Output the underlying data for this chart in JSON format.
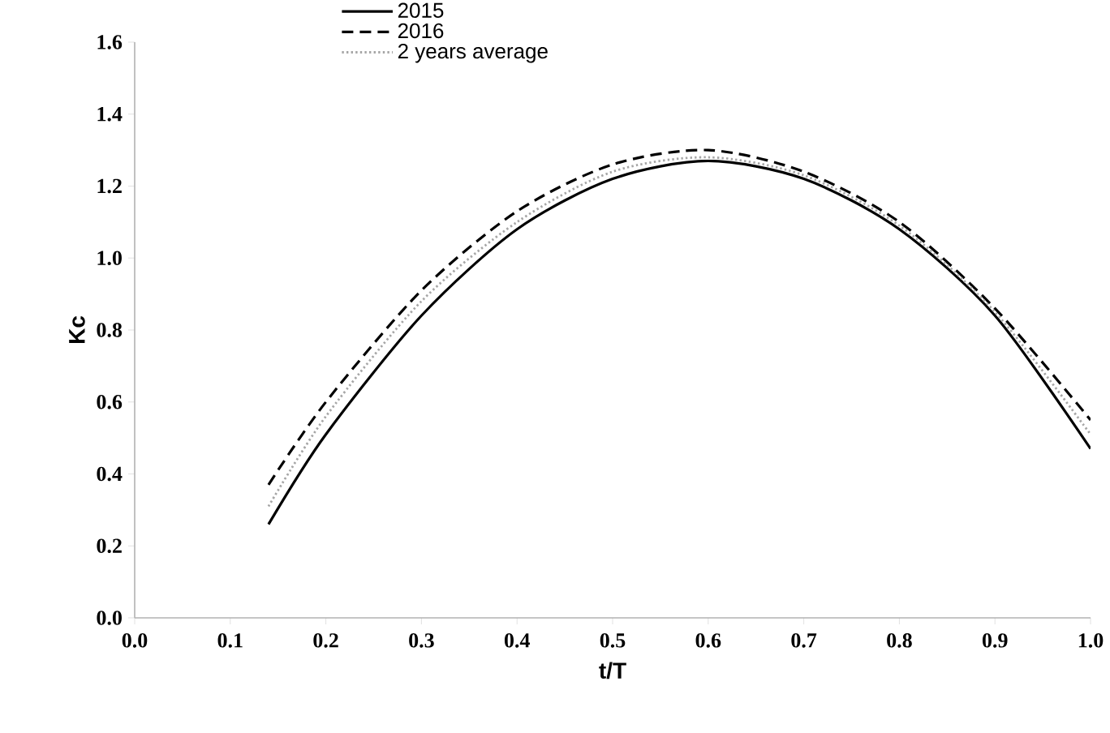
{
  "chart_data": {
    "type": "line",
    "xlabel": "t/T",
    "ylabel": "Kc",
    "xlim": [
      0,
      1
    ],
    "ylim": [
      0,
      1.6
    ],
    "xticks": [
      {
        "value": 0,
        "label": "0.0"
      },
      0.1,
      0.2,
      0.3,
      0.4,
      0.5,
      0.6,
      0.7,
      0.8,
      0.9,
      {
        "value": 1,
        "label": "1.0"
      }
    ],
    "yticks": [
      {
        "value": 0,
        "label": "0.0"
      },
      0.2,
      0.4,
      0.6,
      0.8,
      {
        "value": 1,
        "label": "1.0"
      },
      1.2,
      1.4,
      1.6
    ],
    "grid": false,
    "legend": "top left",
    "marker": "none",
    "series": [
      {
        "name": "2015",
        "color": "#000000",
        "line_style": "solid",
        "x": [
          0.14,
          0.2,
          0.3,
          0.4,
          0.5,
          0.6,
          0.7,
          0.8,
          0.9,
          1.0
        ],
        "values": [
          0.26,
          0.51,
          0.84,
          1.08,
          1.22,
          1.27,
          1.22,
          1.08,
          0.84,
          0.47
        ]
      },
      {
        "name": "2016",
        "color": "#000000",
        "line_style": "dashed",
        "x": [
          0.14,
          0.2,
          0.3,
          0.4,
          0.5,
          0.6,
          0.7,
          0.8,
          0.9,
          1.0
        ],
        "values": [
          0.37,
          0.6,
          0.91,
          1.13,
          1.26,
          1.3,
          1.24,
          1.1,
          0.86,
          0.55
        ]
      },
      {
        "name": "2 years average",
        "color": "#a6a6a6",
        "line_style": "dotted",
        "x": [
          0.14,
          0.2,
          0.3,
          0.4,
          0.5,
          0.6,
          0.7,
          0.8,
          0.9,
          1.0
        ],
        "values": [
          0.31,
          0.56,
          0.88,
          1.1,
          1.24,
          1.28,
          1.23,
          1.09,
          0.85,
          0.51
        ]
      }
    ]
  }
}
